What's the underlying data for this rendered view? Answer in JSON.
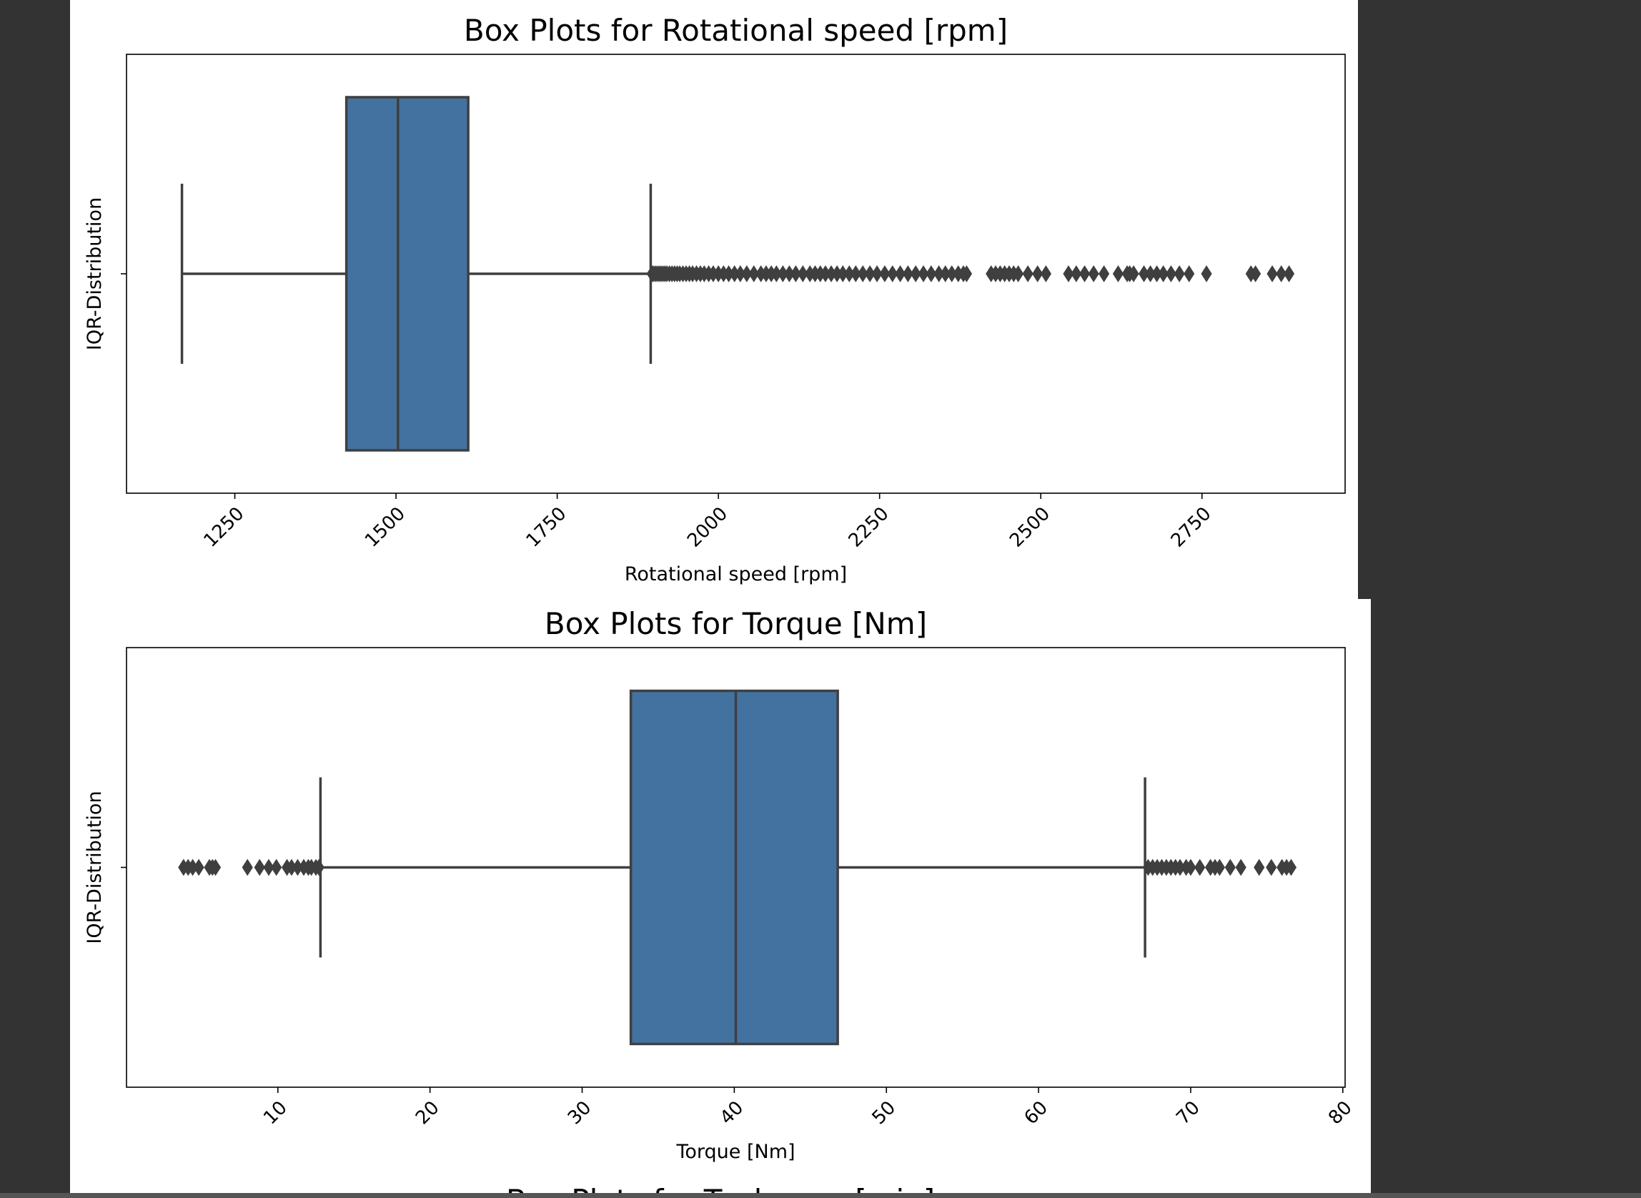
{
  "chart_data": [
    {
      "type": "box",
      "title": "Box Plots for Rotational speed [rpm]",
      "xlabel": "Rotational speed [rpm]",
      "ylabel": "IQR-Distribution",
      "xlim": [
        1082,
        2972
      ],
      "xticks": [
        1250,
        1500,
        1750,
        2000,
        2250,
        2500,
        2750
      ],
      "tick_labels": [
        "1250",
        "1500",
        "1750",
        "2000",
        "2250",
        "2500",
        "2750"
      ],
      "box": {
        "whisker_low": 1168,
        "q1": 1423,
        "median": 1503,
        "q3": 1612,
        "whisker_high": 1895
      },
      "fliers": [
        1897,
        1899,
        1902,
        1905,
        1908,
        1911,
        1914,
        1917,
        1920,
        1924,
        1928,
        1932,
        1936,
        1940,
        1945,
        1950,
        1955,
        1960,
        1966,
        1972,
        1978,
        1985,
        1992,
        2000,
        2008,
        2016,
        2025,
        2034,
        2044,
        2055,
        2066,
        2074,
        2082,
        2090,
        2100,
        2110,
        2120,
        2131,
        2142,
        2150,
        2158,
        2166,
        2175,
        2184,
        2193,
        2203,
        2213,
        2224,
        2235,
        2246,
        2258,
        2270,
        2282,
        2294,
        2306,
        2318,
        2330,
        2342,
        2352,
        2362,
        2372,
        2380,
        2385,
        2423,
        2430,
        2437,
        2444,
        2451,
        2458,
        2465,
        2480,
        2495,
        2508,
        2543,
        2555,
        2568,
        2582,
        2598,
        2620,
        2634,
        2638,
        2644,
        2660,
        2670,
        2680,
        2690,
        2702,
        2715,
        2730,
        2757,
        2826,
        2833,
        2859,
        2873,
        2885
      ],
      "box_color": "#4372a0",
      "line_color": "#3f3f3f"
    },
    {
      "type": "box",
      "title": "Box Plots for Torque [Nm]",
      "xlabel": "Torque [Nm]",
      "ylabel": "IQR-Distribution",
      "xlim": [
        0.05,
        80.15
      ],
      "xticks": [
        10,
        20,
        30,
        40,
        50,
        60,
        70,
        80
      ],
      "tick_labels": [
        "10",
        "20",
        "30",
        "40",
        "50",
        "60",
        "70",
        "80"
      ],
      "box": {
        "whisker_low": 12.8,
        "q1": 33.2,
        "median": 40.1,
        "q3": 46.8,
        "whisker_high": 67.0
      },
      "fliers": [
        3.8,
        4.1,
        4.4,
        4.8,
        5.5,
        5.7,
        5.9,
        8.0,
        8.8,
        9.4,
        9.9,
        10.6,
        10.9,
        11.3,
        11.7,
        12.0,
        12.2,
        12.5,
        12.7,
        67.2,
        67.5,
        67.8,
        68.1,
        68.4,
        68.7,
        69.0,
        69.3,
        69.7,
        70.0,
        70.6,
        71.3,
        71.6,
        71.9,
        72.6,
        73.3,
        74.5,
        75.3,
        76.0,
        76.3,
        76.6
      ],
      "box_color": "#4372a0",
      "line_color": "#3f3f3f"
    }
  ],
  "cut_title": "Box Plots for Tool wear [min]"
}
